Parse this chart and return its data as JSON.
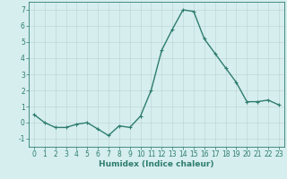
{
  "x": [
    0,
    1,
    2,
    3,
    4,
    5,
    6,
    7,
    8,
    9,
    10,
    11,
    12,
    13,
    14,
    15,
    16,
    17,
    18,
    19,
    20,
    21,
    22,
    23
  ],
  "y": [
    0.5,
    0.0,
    -0.3,
    -0.3,
    -0.1,
    0.0,
    -0.4,
    -0.8,
    -0.2,
    -0.3,
    0.4,
    2.0,
    4.5,
    5.8,
    7.0,
    6.9,
    5.2,
    4.3,
    3.4,
    2.5,
    1.3,
    1.3,
    1.4,
    1.1
  ],
  "line_color": "#2e7d6e",
  "marker": "+",
  "marker_size": 3,
  "linewidth": 1.0,
  "xlabel": "Humidex (Indice chaleur)",
  "xlim": [
    -0.5,
    23.5
  ],
  "ylim": [
    -1.5,
    7.5
  ],
  "yticks": [
    -1,
    0,
    1,
    2,
    3,
    4,
    5,
    6,
    7
  ],
  "xticks": [
    0,
    1,
    2,
    3,
    4,
    5,
    6,
    7,
    8,
    9,
    10,
    11,
    12,
    13,
    14,
    15,
    16,
    17,
    18,
    19,
    20,
    21,
    22,
    23
  ],
  "bg_color": "#d6eeee",
  "grid_color": "#c0d8d8",
  "tick_fontsize": 5.5,
  "xlabel_fontsize": 6.5,
  "xlabel_fontweight": "bold"
}
